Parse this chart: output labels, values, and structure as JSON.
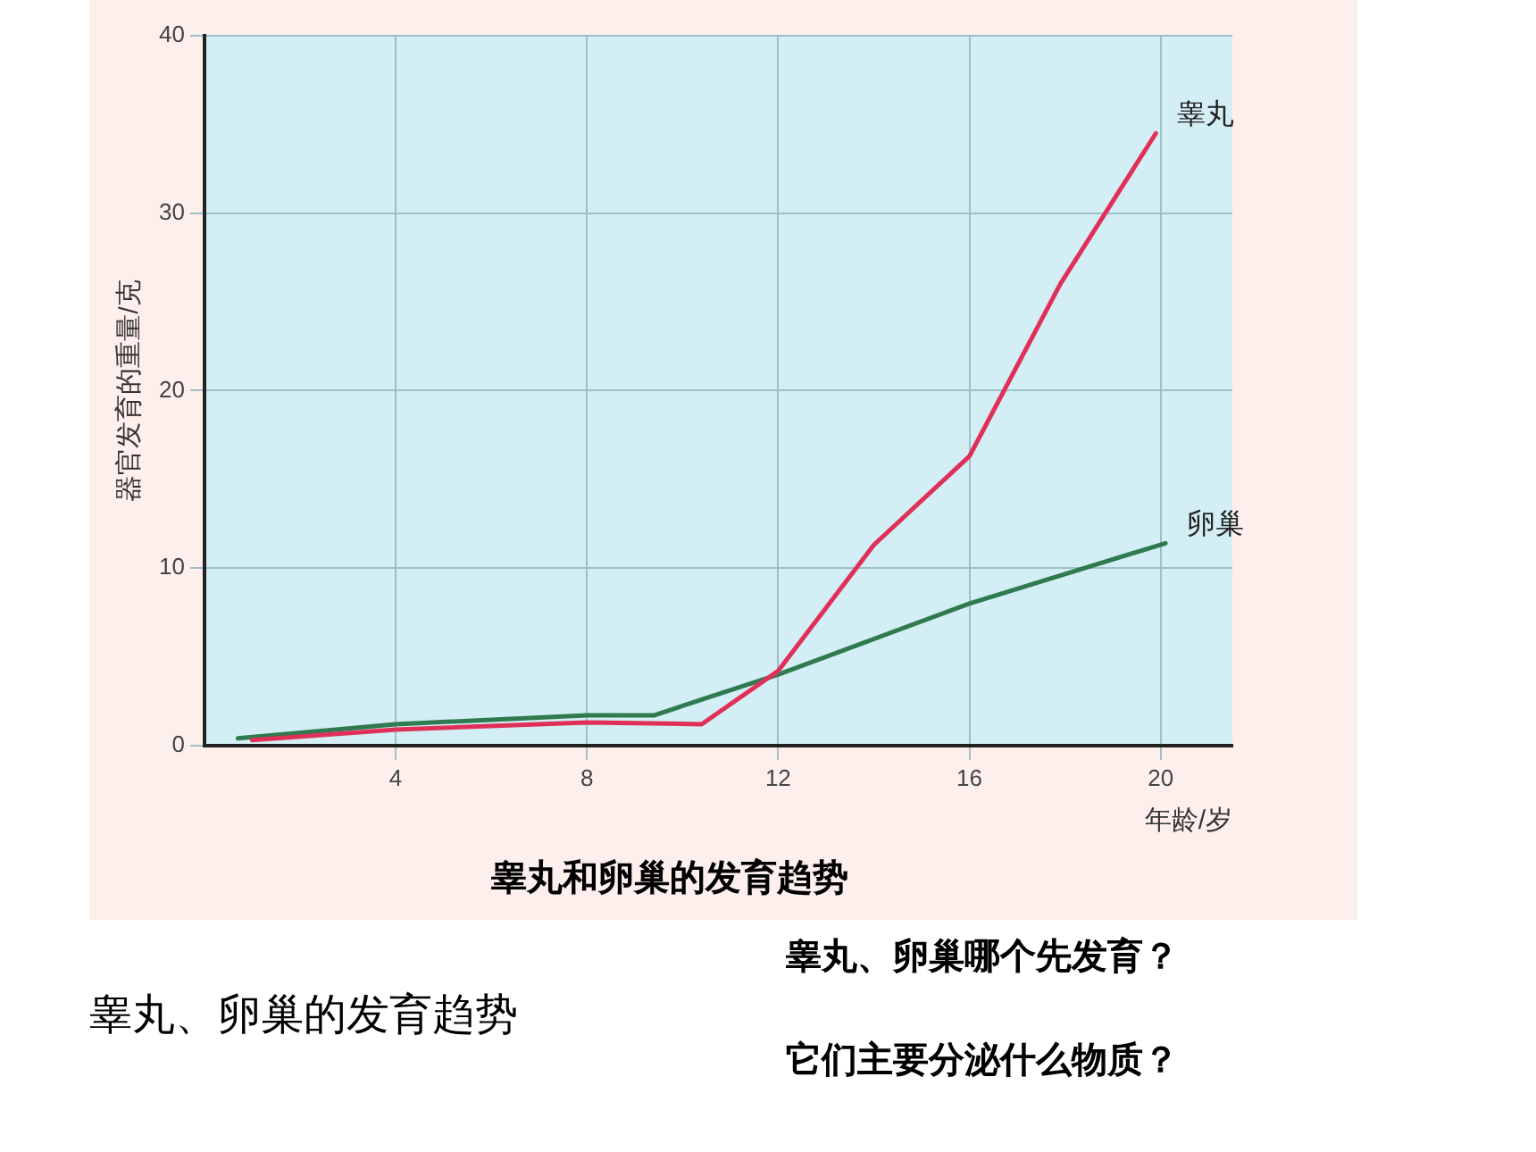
{
  "chart_data": {
    "type": "line",
    "title": "睾丸和卵巢的发育趋势",
    "xlabel": "年龄/岁",
    "ylabel": "器官发育的重量/克",
    "xlim": [
      0,
      21.5
    ],
    "xticks": [
      4,
      8,
      12,
      16,
      20
    ],
    "ylim": [
      0,
      40
    ],
    "yticks": [
      0,
      10,
      20,
      30,
      40
    ],
    "grid": true,
    "legend": false,
    "marker": "none",
    "line_style": "solid",
    "series": [
      {
        "name": "睾丸",
        "color": "#e0305a",
        "x": [
          1,
          4,
          8,
          10.4,
          12,
          14,
          16,
          17.9,
          19.9
        ],
        "values": [
          0.3,
          0.9,
          1.3,
          1.2,
          4.2,
          11.3,
          16.3,
          26,
          34.5
        ]
      },
      {
        "name": "卵巢",
        "color": "#2f7a4f",
        "x": [
          0.7,
          4,
          8,
          9.4,
          12,
          16,
          20.1
        ],
        "values": [
          0.4,
          1.2,
          1.7,
          1.7,
          4.0,
          8.0,
          11.4
        ]
      }
    ],
    "annotations": [
      "睾丸、卵巢的发育趋势",
      "睾丸、卵巢哪个先发育？",
      "它们主要分泌什么物质？"
    ]
  }
}
